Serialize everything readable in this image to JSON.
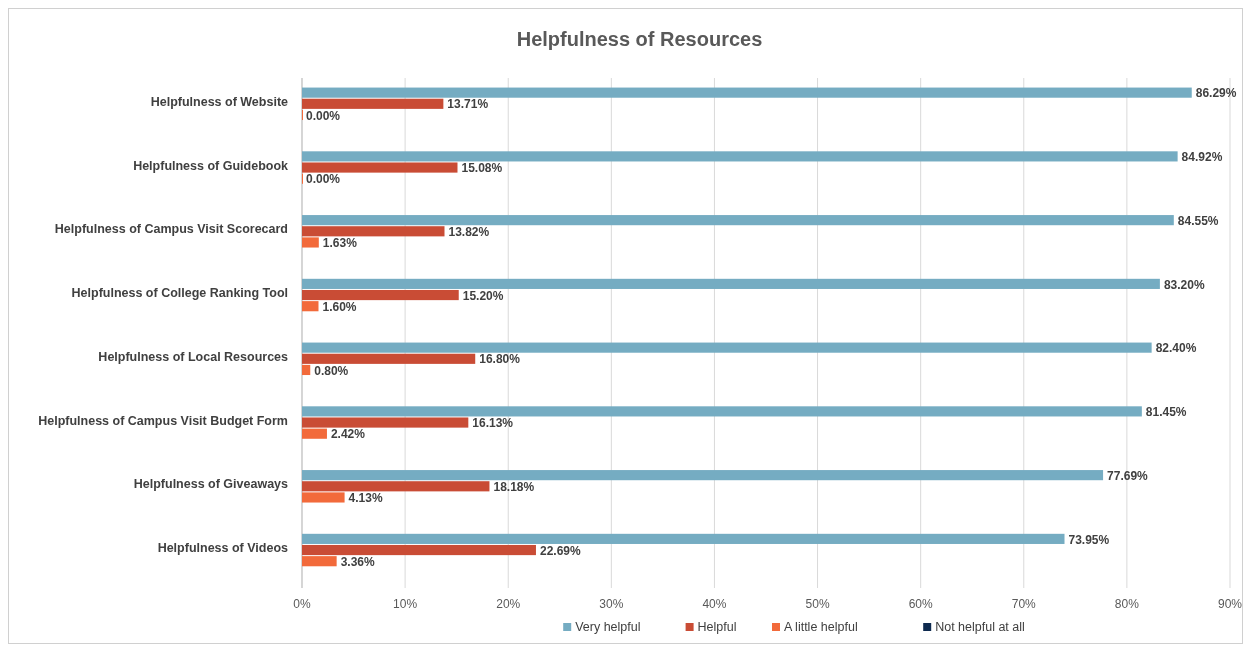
{
  "chart_data": {
    "type": "bar",
    "orientation": "horizontal",
    "title": "Helpfulness of Resources",
    "categories": [
      "Helpfulness of Website",
      "Helpfulness of Guidebook",
      "Helpfulness of Campus Visit Scorecard",
      "Helpfulness of College Ranking Tool",
      "Helpfulness of Local Resources",
      "Helpfulness of Campus Visit Budget Form",
      "Helpfulness of Giveaways",
      "Helpfulness of Videos"
    ],
    "series": [
      {
        "name": "Very helpful",
        "color": "#75acc2",
        "values": [
          86.29,
          84.92,
          84.55,
          83.2,
          82.4,
          81.45,
          77.69,
          73.95
        ],
        "value_labels": [
          "86.29%",
          "84.92%",
          "84.55%",
          "83.20%",
          "82.40%",
          "81.45%",
          "77.69%",
          "73.95%"
        ]
      },
      {
        "name": "Helpful",
        "color": "#c94c35",
        "values": [
          13.71,
          15.08,
          13.82,
          15.2,
          16.8,
          16.13,
          18.18,
          22.69
        ],
        "value_labels": [
          "13.71%",
          "15.08%",
          "13.82%",
          "15.20%",
          "16.80%",
          "16.13%",
          "18.18%",
          "22.69%"
        ]
      },
      {
        "name": "A little helpful",
        "color": "#f26a3b",
        "values": [
          0,
          0,
          1.63,
          1.6,
          0.8,
          2.42,
          4.13,
          3.36
        ],
        "value_labels": [
          "0.00%",
          "0.00%",
          "1.63%",
          "1.60%",
          "0.80%",
          "2.42%",
          "4.13%",
          "3.36%"
        ]
      },
      {
        "name": "Not helpful at all",
        "color": "#0e2a4f",
        "values": [
          null,
          null,
          null,
          null,
          null,
          null,
          null,
          null
        ]
      }
    ],
    "xlim": [
      0,
      90
    ],
    "xticks": [
      {
        "value": 0,
        "label": "0%"
      },
      {
        "value": 10,
        "label": "10%"
      },
      {
        "value": 20,
        "label": "20%"
      },
      {
        "value": 30,
        "label": "30%"
      },
      {
        "value": 40,
        "label": "40%"
      },
      {
        "value": 50,
        "label": "50%"
      },
      {
        "value": 60,
        "label": "60%"
      },
      {
        "value": 70,
        "label": "70%"
      },
      {
        "value": 80,
        "label": "80%"
      },
      {
        "value": 90,
        "label": "90%"
      }
    ],
    "grid": "x",
    "legend": "bottom"
  }
}
